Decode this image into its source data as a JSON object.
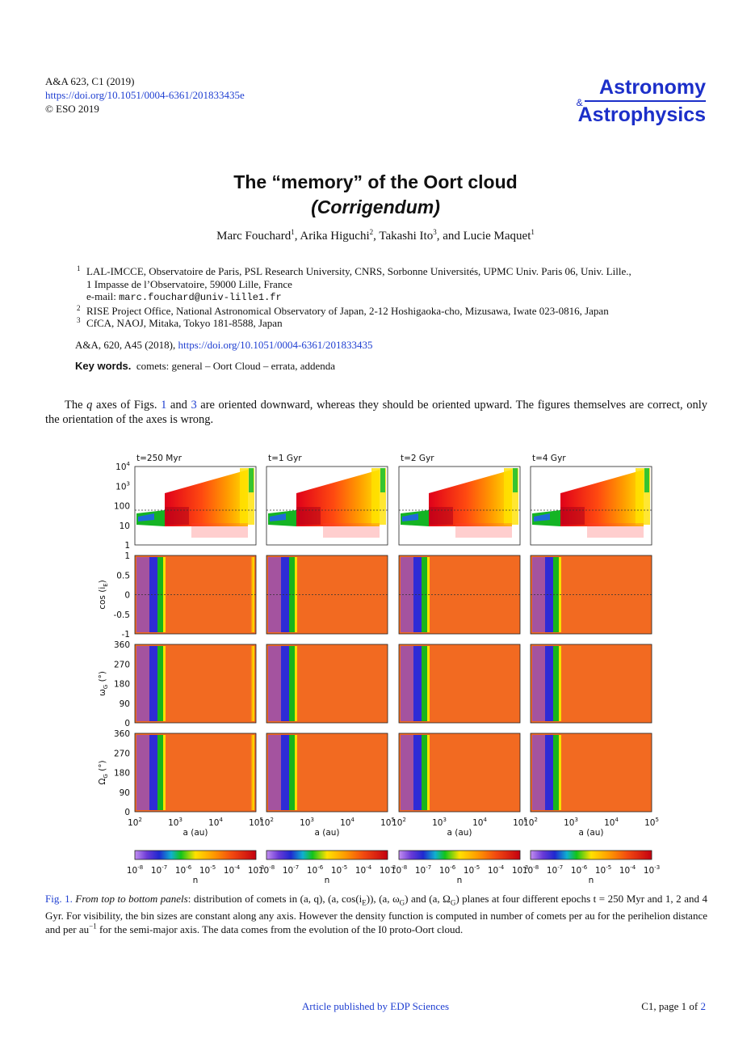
{
  "header": {
    "citation": "A&A 623, C1 (2019)",
    "doi": "https://doi.org/10.1051/0004-6361/201833435e",
    "copyright": "© ESO 2019",
    "journal_line1": "Astronomy",
    "journal_amp": "&",
    "journal_line2": "Astrophysics"
  },
  "title": {
    "main": "The “memory” of the Oort cloud",
    "sub": "(Corrigendum)"
  },
  "authors": [
    {
      "name": "Marc Fouchard",
      "aff": "1",
      "sep": ", "
    },
    {
      "name": "Arika Higuchi",
      "aff": "2",
      "sep": ", "
    },
    {
      "name": "Takashi Ito",
      "aff": "3",
      "sep": ", and "
    },
    {
      "name": "Lucie Maquet",
      "aff": "1",
      "sep": ""
    }
  ],
  "affiliations": {
    "a1_num": "1",
    "a1_line1": "LAL-IMCCE, Observatoire de Paris, PSL Research University, CNRS, Sorbonne Universités, UPMC Univ. Paris 06, Univ. Lille.,",
    "a1_line2": "1 Impasse de l’Observatoire, 59000 Lille, France",
    "email_label": "e-mail: ",
    "email": "marc.fouchard@univ-lille1.fr",
    "a2_num": "2",
    "a2": "RISE Project Office, National Astronomical Observatory of Japan, 2-12 Hoshigaoka-cho, Mizusawa, Iwate 023-0816, Japan",
    "a3_num": "3",
    "a3": "CfCA, NAOJ, Mitaka, Tokyo 181-8588, Japan"
  },
  "reference": {
    "text": "A&A, 620, A45 (2018), ",
    "doi": "https://doi.org/10.1051/0004-6361/201833435"
  },
  "keywords": {
    "label": "Key words.",
    "text": "comets: general – Oort Cloud – errata, addenda"
  },
  "body": {
    "p1_a": "The ",
    "p1_q": "q",
    "p1_b": " axes of Figs. ",
    "fig1": "1",
    "p1_c": " and ",
    "fig3": "3",
    "p1_d": " are oriented downward, whereas they should be oriented upward. The figures themselves are correct, only the orientation of the axes is wrong."
  },
  "figure": {
    "panel_titles": [
      "t=250 Myr",
      "t=1 Gyr",
      "t=2 Gyr",
      "t=4 Gyr"
    ],
    "row1_ticks": [
      {
        "b": "10",
        "s": "4"
      },
      {
        "b": "10",
        "s": "3"
      },
      {
        "b": "100",
        "s": ""
      },
      {
        "b": "10",
        "s": ""
      },
      {
        "b": "1",
        "s": ""
      }
    ],
    "row2_ticks": [
      "1",
      "0.5",
      "0",
      "-0.5",
      "-1"
    ],
    "row3_ticks": [
      "360",
      "270",
      "180",
      "90",
      "0"
    ],
    "row4_ticks": [
      "360",
      "270",
      "180",
      "90",
      "0"
    ],
    "row2_ylabel": "cos (i",
    "row2_ylabel_sub": "E",
    "row3_ylabel": "ω",
    "row3_ylabel_sub": "G",
    "row4_ylabel": "Ω",
    "row4_ylabel_sub": "G",
    "ylabel_unit": " (°)",
    "x_ticks": [
      {
        "b": "10",
        "s": "2"
      },
      {
        "b": "10",
        "s": "3"
      },
      {
        "b": "10",
        "s": "4"
      },
      {
        "b": "10",
        "s": "5"
      }
    ],
    "x_label": "a (au)",
    "cb_ticks": [
      {
        "b": "10",
        "s": "-8"
      },
      {
        "b": "10",
        "s": "-7"
      },
      {
        "b": "10",
        "s": "-6"
      },
      {
        "b": "10",
        "s": "-5"
      },
      {
        "b": "10",
        "s": "-4"
      },
      {
        "b": "10",
        "s": "-3"
      }
    ],
    "cb_label": "n"
  },
  "caption": {
    "label": "Fig. 1.",
    "text1": " From top to bottom panels",
    "text2": ": distribution of comets in (a, q), (a, cos(i",
    "text3": "E",
    "text4": ")), (a, ω",
    "text5": "G",
    "text6": ") and (a, Ω",
    "text7": "G",
    "text8": ") planes at four different epochs t = 250 Myr and 1, 2 and 4 Gyr. For visibility, the bin sizes are constant along any axis. However the density function is computed in number of comets per au for the perihelion distance and per au",
    "text9": "−1",
    "text10": " for the semi-major axis. The data comes from the evolution of the I0 proto-Oort cloud."
  },
  "footer": {
    "center": "Article published by EDP Sciences",
    "right_prefix": "C1, page 1 of ",
    "right_link": "2"
  }
}
